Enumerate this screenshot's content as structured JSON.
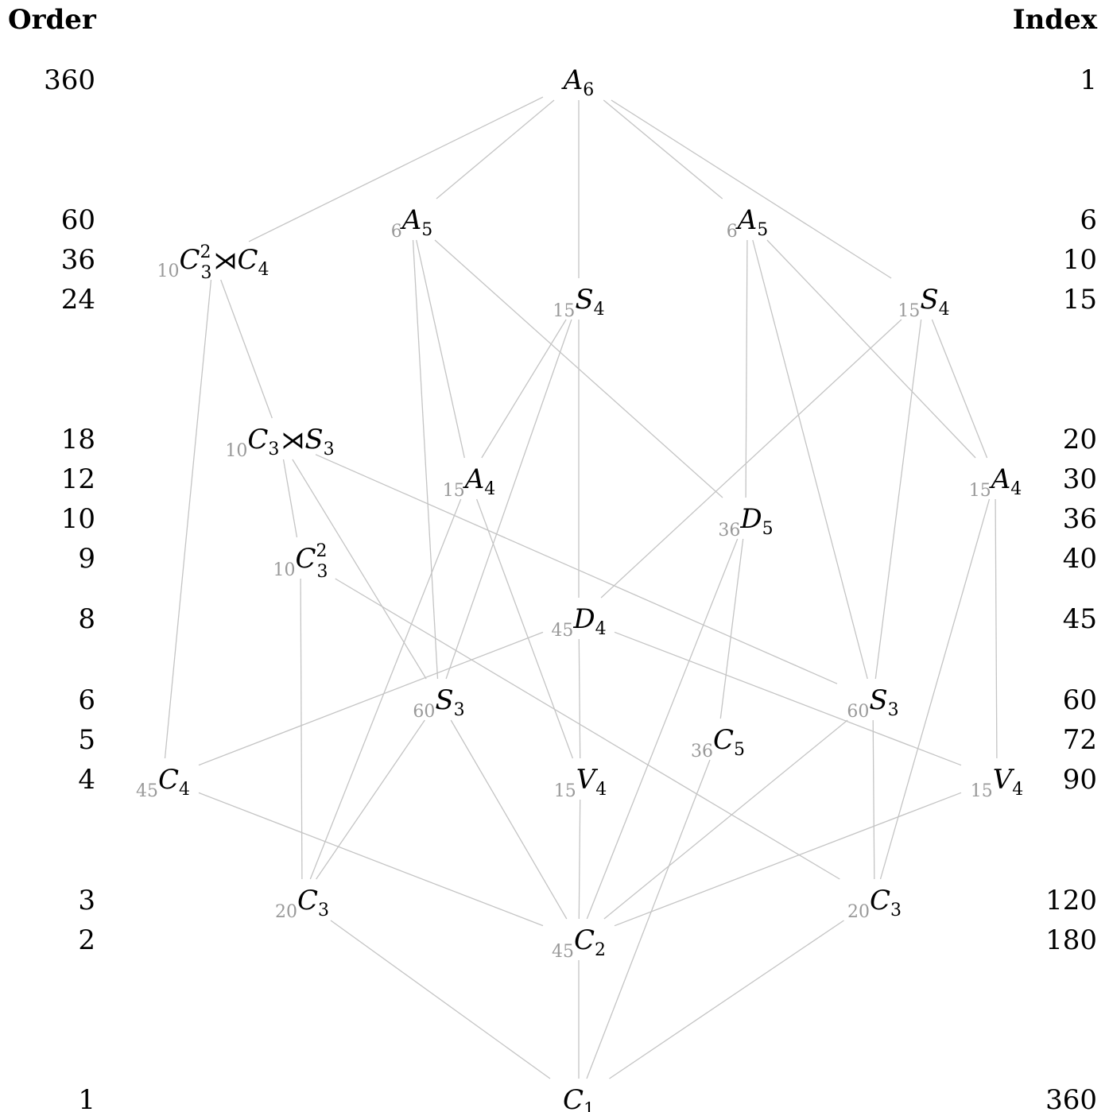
{
  "headers": {
    "order": "Order",
    "index": "Index"
  },
  "levels": [
    {
      "order": "360",
      "index": "1"
    },
    {
      "order": "60",
      "index": "6"
    },
    {
      "order": "36",
      "index": "10"
    },
    {
      "order": "24",
      "index": "15"
    },
    {
      "order": "18",
      "index": "20"
    },
    {
      "order": "12",
      "index": "30"
    },
    {
      "order": "10",
      "index": "36"
    },
    {
      "order": "9",
      "index": "40"
    },
    {
      "order": "8",
      "index": "45"
    },
    {
      "order": "6",
      "index": "60"
    },
    {
      "order": "5",
      "index": "72"
    },
    {
      "order": "4",
      "index": "90"
    },
    {
      "order": "3",
      "index": "120"
    },
    {
      "order": "2",
      "index": "180"
    },
    {
      "order": "1",
      "index": "360"
    }
  ],
  "nodes": [
    {
      "id": "A6",
      "count": "",
      "label": [
        [
          "A",
          ""
        ],
        [
          "",
          "6"
        ]
      ]
    },
    {
      "id": "A5a",
      "count": "6",
      "label": [
        [
          "A",
          ""
        ],
        [
          "",
          "5"
        ]
      ]
    },
    {
      "id": "A5b",
      "count": "6",
      "label": [
        [
          "A",
          ""
        ],
        [
          "",
          "5"
        ]
      ]
    },
    {
      "id": "C32xC4",
      "count": "10",
      "label": [
        [
          "C",
          ""
        ],
        [
          "",
          "2|3"
        ],
        [
          "⋊",
          "op"
        ],
        [
          "C",
          ""
        ],
        [
          "",
          "4"
        ]
      ]
    },
    {
      "id": "S4a",
      "count": "15",
      "label": [
        [
          "S",
          ""
        ],
        [
          "",
          "4"
        ]
      ]
    },
    {
      "id": "S4b",
      "count": "15",
      "label": [
        [
          "S",
          ""
        ],
        [
          "",
          "4"
        ]
      ]
    },
    {
      "id": "C3xS3",
      "count": "10",
      "label": [
        [
          "C",
          ""
        ],
        [
          "",
          "3"
        ],
        [
          "⋊",
          "op"
        ],
        [
          "S",
          ""
        ],
        [
          "",
          "3"
        ]
      ]
    },
    {
      "id": "A4a",
      "count": "15",
      "label": [
        [
          "A",
          ""
        ],
        [
          "",
          "4"
        ]
      ]
    },
    {
      "id": "A4b",
      "count": "15",
      "label": [
        [
          "A",
          ""
        ],
        [
          "",
          "4"
        ]
      ]
    },
    {
      "id": "D5",
      "count": "36",
      "label": [
        [
          "D",
          ""
        ],
        [
          "",
          "5"
        ]
      ]
    },
    {
      "id": "C32",
      "count": "10",
      "label": [
        [
          "C",
          ""
        ],
        [
          "",
          "2|3"
        ]
      ]
    },
    {
      "id": "D4",
      "count": "45",
      "label": [
        [
          "D",
          ""
        ],
        [
          "",
          "4"
        ]
      ]
    },
    {
      "id": "S3a",
      "count": "60",
      "label": [
        [
          "S",
          ""
        ],
        [
          "",
          "3"
        ]
      ]
    },
    {
      "id": "S3b",
      "count": "60",
      "label": [
        [
          "S",
          ""
        ],
        [
          "",
          "3"
        ]
      ]
    },
    {
      "id": "C5",
      "count": "36",
      "label": [
        [
          "C",
          ""
        ],
        [
          "",
          "5"
        ]
      ]
    },
    {
      "id": "C4",
      "count": "45",
      "label": [
        [
          "C",
          ""
        ],
        [
          "",
          "4"
        ]
      ]
    },
    {
      "id": "V4a",
      "count": "15",
      "label": [
        [
          "V",
          ""
        ],
        [
          "",
          "4"
        ]
      ]
    },
    {
      "id": "V4b",
      "count": "15",
      "label": [
        [
          "V",
          ""
        ],
        [
          "",
          "4"
        ]
      ]
    },
    {
      "id": "C3a",
      "count": "20",
      "label": [
        [
          "C",
          ""
        ],
        [
          "",
          "3"
        ]
      ]
    },
    {
      "id": "C3b",
      "count": "20",
      "label": [
        [
          "C",
          ""
        ],
        [
          "",
          "3"
        ]
      ]
    },
    {
      "id": "C2",
      "count": "45",
      "label": [
        [
          "C",
          ""
        ],
        [
          "",
          "2"
        ]
      ]
    },
    {
      "id": "C1",
      "count": "",
      "label": [
        [
          "C",
          ""
        ],
        [
          "",
          "1"
        ]
      ]
    }
  ],
  "edges": [
    [
      "A6",
      "C32xC4"
    ],
    [
      "A6",
      "A5a"
    ],
    [
      "A6",
      "S4a"
    ],
    [
      "A6",
      "A5b"
    ],
    [
      "A6",
      "S4b"
    ],
    [
      "A5a",
      "A4a"
    ],
    [
      "A5a",
      "S3a"
    ],
    [
      "A5a",
      "D5"
    ],
    [
      "A5b",
      "D5"
    ],
    [
      "A5b",
      "S3b"
    ],
    [
      "A5b",
      "A4b"
    ],
    [
      "C32xC4",
      "C3xS3"
    ],
    [
      "C32xC4",
      "C4"
    ],
    [
      "S4a",
      "A4a"
    ],
    [
      "S4a",
      "D4"
    ],
    [
      "S4a",
      "S3a"
    ],
    [
      "S4b",
      "D4"
    ],
    [
      "S4b",
      "A4b"
    ],
    [
      "S4b",
      "S3b"
    ],
    [
      "C3xS3",
      "C32"
    ],
    [
      "C3xS3",
      "S3a"
    ],
    [
      "C3xS3",
      "S3b"
    ],
    [
      "A4a",
      "C3a"
    ],
    [
      "A4a",
      "V4a"
    ],
    [
      "A4b",
      "C3b"
    ],
    [
      "A4b",
      "V4b"
    ],
    [
      "D5",
      "C2"
    ],
    [
      "D5",
      "C5"
    ],
    [
      "C32",
      "C3a"
    ],
    [
      "C32",
      "C3b"
    ],
    [
      "D4",
      "C4"
    ],
    [
      "D4",
      "V4a"
    ],
    [
      "D4",
      "V4b"
    ],
    [
      "S3a",
      "C3a"
    ],
    [
      "S3a",
      "C2"
    ],
    [
      "S3b",
      "C2"
    ],
    [
      "S3b",
      "C3b"
    ],
    [
      "V4a",
      "C2"
    ],
    [
      "V4b",
      "C2"
    ],
    [
      "C4",
      "C2"
    ],
    [
      "C3a",
      "C1"
    ],
    [
      "C2",
      "C1"
    ],
    [
      "C5",
      "C1"
    ],
    [
      "C3b",
      "C1"
    ]
  ]
}
